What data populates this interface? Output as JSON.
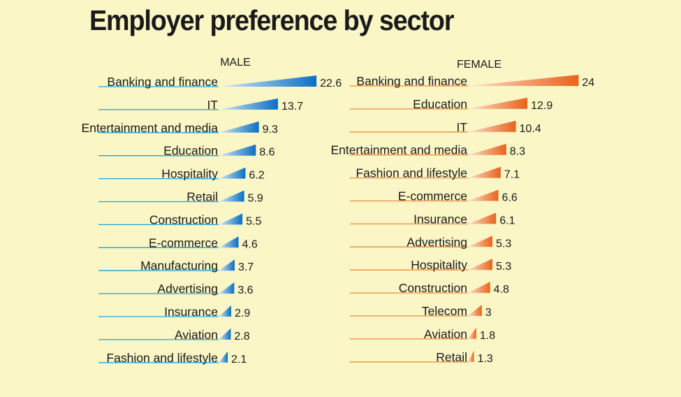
{
  "chart_data": {
    "type": "bar",
    "title": "Employer preference by sector",
    "panels": [
      {
        "name": "MALE",
        "color": "#0b6fc2",
        "light_color": "#d6ecf7",
        "line_color": "#1aa3db",
        "categories": [
          "Banking and finance",
          "IT",
          "Entertainment and media",
          "Education",
          "Hospitality",
          "Retail",
          "Construction",
          "E-commerce",
          "Manufacturing",
          "Advertising",
          "Insurance",
          "Aviation",
          "Fashion and lifestyle"
        ],
        "values": [
          22.6,
          13.7,
          9.3,
          8.6,
          6.2,
          5.9,
          5.5,
          4.6,
          3.7,
          3.6,
          2.9,
          2.8,
          2.1
        ],
        "value_labels": [
          "22.6",
          "13.7",
          "9.3",
          "8.6",
          "6.2",
          "5.9",
          "5.5",
          "4.6",
          "3.7",
          "3.6",
          "2.9",
          "2.8",
          "2.1"
        ]
      },
      {
        "name": "FEMALE",
        "color": "#e8631c",
        "light_color": "#fbe2cd",
        "line_color": "#f08a3a",
        "categories": [
          "Banking and finance",
          "Education",
          "IT",
          "Entertainment and media",
          "Fashion and lifestyle",
          "E-commerce",
          "Insurance",
          "Advertising",
          "Hospitality",
          "Construction",
          "Telecom",
          "Aviation",
          "Retail"
        ],
        "values": [
          24,
          12.9,
          10.4,
          8.3,
          7.1,
          6.6,
          6.1,
          5.3,
          5.3,
          4.8,
          3,
          1.8,
          1.3
        ],
        "value_labels": [
          "24",
          "12.9",
          "10.4",
          "8.3",
          "7.1",
          "6.6",
          "6.1",
          "5.3",
          "5.3",
          "4.8",
          "3",
          "1.8",
          "1.3"
        ]
      }
    ]
  }
}
